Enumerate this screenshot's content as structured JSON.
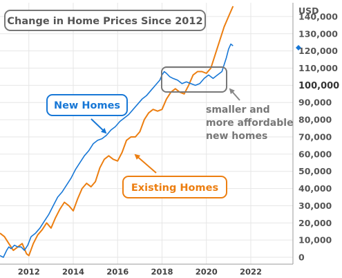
{
  "chart_data": {
    "type": "line",
    "title": "Change in Home Prices Since 2012",
    "y_unit": "USD",
    "x_ticks": [
      "2012",
      "2014",
      "2016",
      "2018",
      "2020",
      "2022"
    ],
    "y_ticks": [
      "0",
      "10,000",
      "20,000",
      "30,000",
      "40,000",
      "50,000",
      "60,000",
      "70,000",
      "80,000",
      "90,000",
      "100,000",
      "110,000",
      "120,000",
      "130,000",
      "140,000"
    ],
    "xlim": [
      2010.7,
      2023.9
    ],
    "ylim": [
      -4000,
      148000
    ],
    "grid": true,
    "series": [
      {
        "name": "New Homes",
        "color": "#1777d6",
        "x": [
          2010.7,
          2010.85,
          2011.0,
          2011.1,
          2011.2,
          2011.35,
          2011.5,
          2011.65,
          2011.8,
          2011.95,
          2012.1,
          2012.3,
          2012.5,
          2012.7,
          2012.9,
          2013.1,
          2013.3,
          2013.5,
          2013.7,
          2013.9,
          2014.1,
          2014.3,
          2014.5,
          2014.7,
          2014.9,
          2015.1,
          2015.3,
          2015.5,
          2015.7,
          2015.9,
          2016.1,
          2016.3,
          2016.5,
          2016.7,
          2016.9,
          2017.1,
          2017.3,
          2017.5,
          2017.7,
          2017.9,
          2018.0,
          2018.1,
          2018.2,
          2018.35,
          2018.5,
          2018.7,
          2018.9,
          2019.1,
          2019.3,
          2019.5,
          2019.7,
          2019.9,
          2020.1,
          2020.3,
          2020.5,
          2020.7,
          2020.8,
          2020.9,
          2021.0,
          2021.1,
          2021.2
        ],
        "values": [
          1000,
          0,
          4000,
          6000,
          5000,
          7000,
          6000,
          6000,
          4000,
          7000,
          12000,
          14000,
          17000,
          21000,
          25000,
          30000,
          35000,
          38000,
          42000,
          46000,
          51000,
          55000,
          59000,
          62000,
          66000,
          68000,
          69000,
          71000,
          74000,
          76000,
          79000,
          81000,
          83000,
          86000,
          89000,
          92000,
          94000,
          97000,
          100000,
          103000,
          106000,
          108000,
          107000,
          105000,
          104000,
          103000,
          101000,
          102000,
          101000,
          100000,
          101000,
          104000,
          106000,
          104000,
          106000,
          108000,
          112000,
          116000,
          121000,
          124000,
          123000
        ]
      },
      {
        "name": "Existing Homes",
        "color": "#ec7e10",
        "x": [
          2010.7,
          2010.9,
          2011.1,
          2011.3,
          2011.5,
          2011.7,
          2011.9,
          2012.0,
          2012.2,
          2012.4,
          2012.6,
          2012.8,
          2013.0,
          2013.2,
          2013.4,
          2013.6,
          2013.8,
          2014.0,
          2014.2,
          2014.4,
          2014.6,
          2014.8,
          2015.0,
          2015.2,
          2015.4,
          2015.6,
          2015.8,
          2016.0,
          2016.2,
          2016.4,
          2016.6,
          2016.8,
          2017.0,
          2017.2,
          2017.4,
          2017.6,
          2017.8,
          2018.0,
          2018.2,
          2018.4,
          2018.6,
          2018.8,
          2019.0,
          2019.2,
          2019.4,
          2019.6,
          2019.8,
          2020.0,
          2020.2,
          2020.4,
          2020.6,
          2020.8,
          2021.0,
          2021.2
        ],
        "values": [
          14000,
          12000,
          8000,
          4000,
          6000,
          8000,
          2000,
          1000,
          8000,
          13000,
          16000,
          20000,
          17000,
          23000,
          28000,
          32000,
          30000,
          27000,
          34000,
          40000,
          43000,
          41000,
          44000,
          52000,
          57000,
          59000,
          57000,
          56000,
          61000,
          68000,
          70000,
          70000,
          73000,
          80000,
          84000,
          86000,
          85000,
          86000,
          92000,
          96000,
          98000,
          96000,
          95000,
          100000,
          106000,
          108000,
          108000,
          107000,
          110000,
          118000,
          126000,
          134000,
          140000,
          146000
        ]
      }
    ],
    "labels": {
      "new_homes": "New Homes",
      "existing_homes": "Existing Homes",
      "note": [
        "smaller and",
        "more affordable",
        "new homes"
      ]
    }
  }
}
